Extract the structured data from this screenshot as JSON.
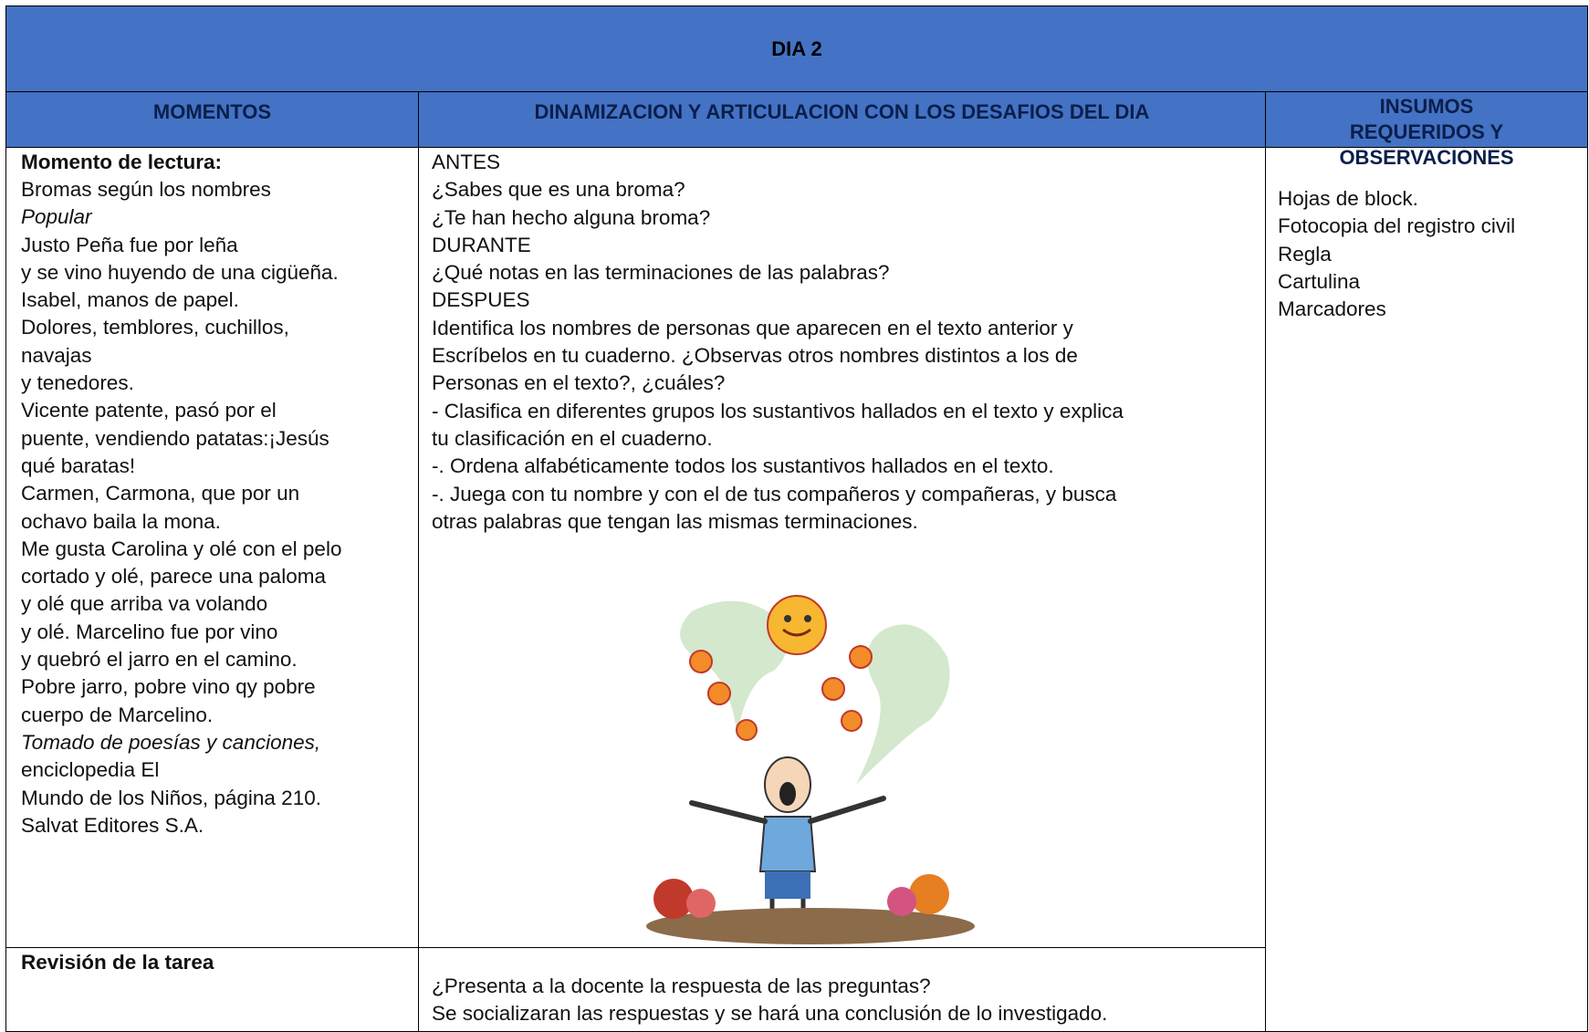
{
  "header": {
    "title": "DIA  2"
  },
  "table": {
    "columns": [
      "MOMENTOS",
      "DINAMIZACION Y ARTICULACION CON LOS DESAFIOS DEL DIA",
      "INSUMOS REQUERIDOS Y OBSERVACIONES"
    ],
    "rows": [
      {
        "moment_title": "Momento de lectura:",
        "moment_lines": [
          "Bromas según los nombres",
          "Popular",
          "Justo Peña fue por leña",
          "y se vino huyendo de una cigüeña.",
          "Isabel, manos de papel.",
          "Dolores, temblores, cuchillos,",
          "navajas",
          "y tenedores.",
          "Vicente patente, pasó por el",
          "puente, vendiendo patatas:¡Jesús",
          "qué baratas!",
          "Carmen, Carmona, que por un",
          "ochavo baila la mona.",
          "Me gusta Carolina y olé con el pelo",
          "cortado y olé, parece una paloma",
          "y olé que arriba va volando",
          "y olé. Marcelino fue por vino",
          "y quebró el jarro en el camino.",
          "Pobre jarro, pobre vino qy pobre",
          "cuerpo de Marcelino.",
          "Tomado de poesías y canciones,",
          "enciclopedia El",
          "Mundo de los Niños, página 210.",
          "Salvat Editores S.A."
        ],
        "activity_lines": [
          "ANTES",
          "¿Sabes que es una broma?",
          "¿Te han hecho alguna broma?",
          "DURANTE",
          "¿Qué notas en las terminaciones de las palabras?",
          "DESPUES",
          "Identifica los nombres de personas que aparecen en el texto anterior y",
          "Escríbelos en tu cuaderno. ¿Observas otros nombres distintos a los de",
          "Personas en el texto?, ¿cuáles?",
          "- Clasifica en diferentes grupos los sustantivos hallados en el texto y explica",
          "tu clasificación en el cuaderno.",
          "-. Ordena alfabéticamente todos los sustantivos hallados en el texto.",
          "-. Juega con tu nombre y con el de tus compañeros y compañeras, y busca",
          "otras palabras que tengan las mismas terminaciones."
        ],
        "supplies": [
          "Hojas de block.",
          "Fotocopia del registro civil",
          "Regla",
          "Cartulina",
          "Marcadores"
        ]
      },
      {
        "moment_title": "Revisión de la tarea",
        "activity_lines": [
          "¿Presenta a la docente la respuesta de las preguntas?",
          "Se socializaran las respuestas y se hará una conclusión de lo investigado."
        ]
      }
    ]
  }
}
